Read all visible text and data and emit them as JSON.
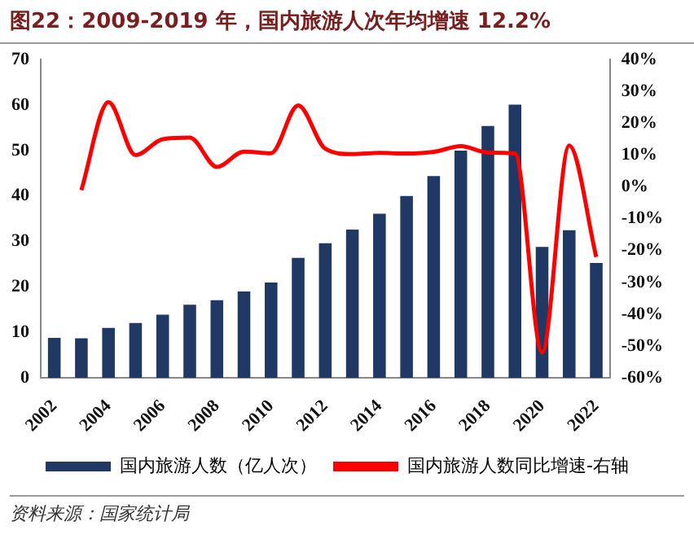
{
  "chart_data": {
    "type": "bar",
    "title": "图22：2009-2019 年，国内旅游人次年均增速 12.2%",
    "categories": [
      "2002",
      null,
      "2004",
      null,
      "2006",
      null,
      "2008",
      null,
      "2010",
      null,
      "2012",
      null,
      "2014",
      null,
      "2016",
      null,
      "2018",
      null,
      "2020",
      null,
      "2022"
    ],
    "series": [
      {
        "name": "国内旅游人数（亿人次）",
        "color": "#1f3864",
        "values": [
          8.8,
          8.7,
          11,
          12.1,
          13.9,
          16.1,
          17.1,
          19,
          21,
          26.4,
          29.6,
          32.6,
          36.1,
          40,
          44.4,
          50,
          55.4,
          60.1,
          28.8,
          32.5,
          25.3
        ]
      },
      {
        "name": "国内旅游人数同比增速-右轴",
        "type": "line",
        "axis": "y2",
        "color": "#ff0000",
        "values": [
          null,
          -1,
          26.6,
          10,
          15,
          15.5,
          6.3,
          11.1,
          10.6,
          25.6,
          12,
          10.3,
          10.7,
          10.5,
          11,
          12.8,
          10.8,
          10.5,
          -52,
          13,
          -22
        ]
      }
    ],
    "ylim": [
      0,
      70
    ],
    "yticks": [
      0,
      10,
      20,
      30,
      40,
      50,
      60,
      70
    ],
    "y2lim": [
      -60,
      40
    ],
    "y2ticks": [
      {
        "value": -60,
        "label": "-60%"
      },
      {
        "value": -50,
        "label": "-50%"
      },
      {
        "value": -40,
        "label": "-40%"
      },
      {
        "value": -30,
        "label": "-30%"
      },
      {
        "value": -20,
        "label": "-20%"
      },
      {
        "value": -10,
        "label": "-10%"
      },
      {
        "value": 0,
        "label": "0%"
      },
      {
        "value": 10,
        "label": "10%"
      },
      {
        "value": 20,
        "label": "20%"
      },
      {
        "value": 30,
        "label": "30%"
      },
      {
        "value": 40,
        "label": "40%"
      }
    ],
    "legend": "bottom",
    "grid": false,
    "annotations": [
      "资料来源：国家统计局"
    ]
  }
}
